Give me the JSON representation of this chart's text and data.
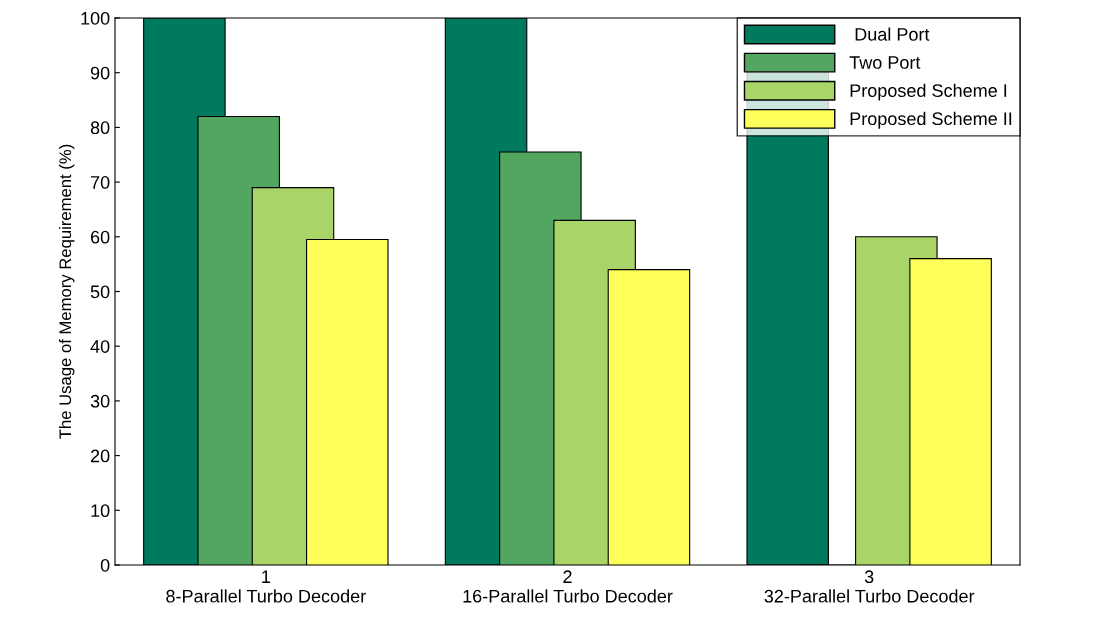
{
  "chart_data": {
    "type": "bar",
    "ylabel": "The Usage of Memory Requirement (%)",
    "categories": [
      "1\n8-Parallel Turbo Decoder",
      "2\n16-Parallel Turbo Decoder",
      "3\n32-Parallel Turbo Decoder"
    ],
    "series": [
      {
        "name": " Dual Port",
        "color": "#007a5e",
        "values": [
          100,
          100,
          90
        ]
      },
      {
        "name": "Two Port",
        "color": "#52a660",
        "values": [
          82,
          75.5,
          null
        ]
      },
      {
        "name": "Proposed Scheme I",
        "color": "#a8d468",
        "values": [
          69,
          63,
          60
        ]
      },
      {
        "name": "Proposed Scheme II",
        "color": "#ffff5c",
        "values": [
          59.5,
          54,
          56
        ]
      }
    ],
    "ylim": [
      0,
      100
    ],
    "yticks": [
      0,
      10,
      20,
      30,
      40,
      50,
      60,
      70,
      80,
      90,
      100
    ],
    "grid": false,
    "legend": "top right"
  }
}
